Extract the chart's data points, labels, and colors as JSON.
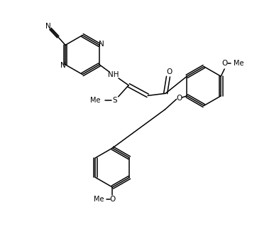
{
  "background_color": "#ffffff",
  "line_color": "#000000",
  "line_width": 1.1,
  "font_size": 7.5,
  "fig_width": 3.86,
  "fig_height": 3.26,
  "dpi": 100,
  "xlim": [
    0,
    10
  ],
  "ylim": [
    0,
    8.5
  ]
}
